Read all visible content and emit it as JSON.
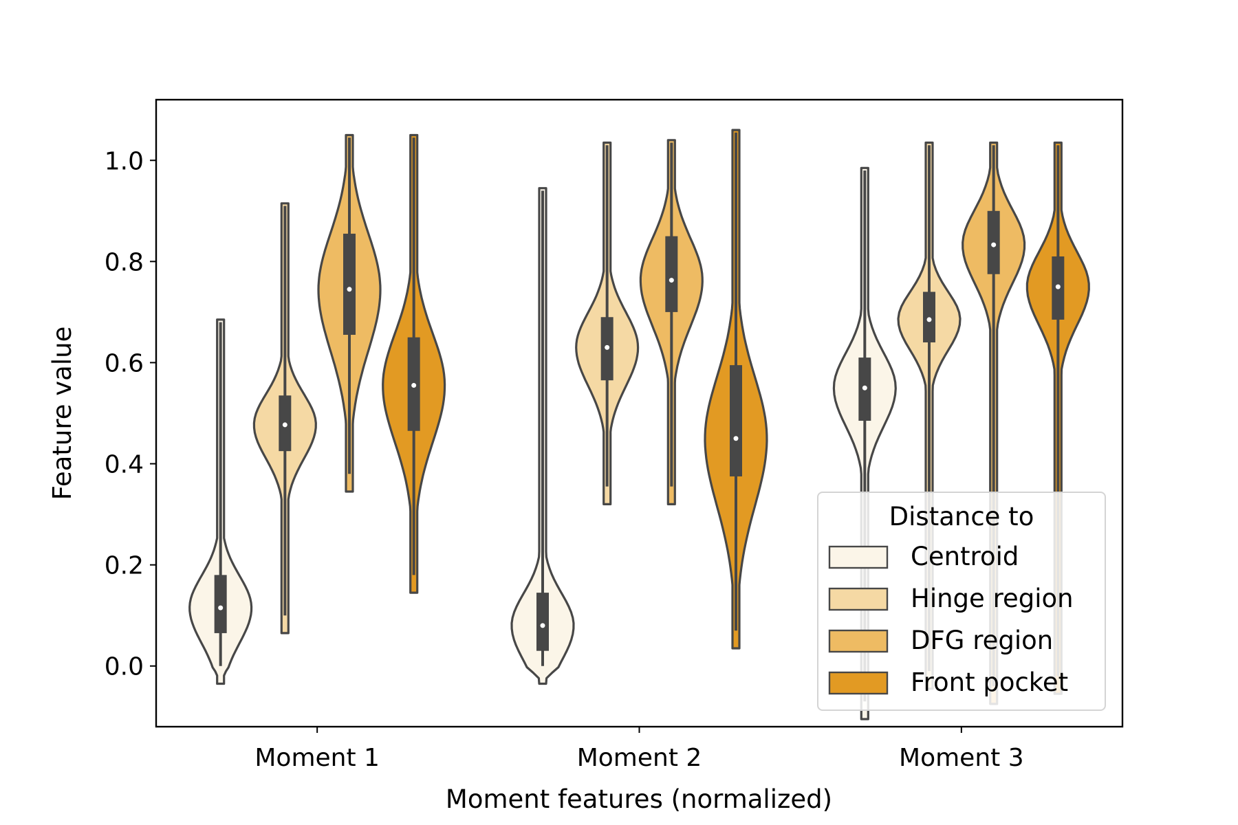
{
  "chart_data": {
    "type": "violin",
    "xlabel": "Moment features (normalized)",
    "ylabel": "Feature value",
    "categories": [
      "Moment 1",
      "Moment 2",
      "Moment 3"
    ],
    "ylim": [
      -0.12,
      1.12
    ],
    "yticks": [
      "0.0",
      "0.2",
      "0.4",
      "0.6",
      "0.8",
      "1.0"
    ],
    "legend": {
      "title": "Distance to",
      "placement": "lower right"
    },
    "series": [
      {
        "name": "Centroid",
        "color": "#fbf5e8",
        "stats": [
          {
            "min": 0.0,
            "q1": 0.065,
            "median": 0.115,
            "q3": 0.18,
            "max": 0.68
          },
          {
            "min": 0.0,
            "q1": 0.03,
            "median": 0.08,
            "q3": 0.145,
            "max": 0.94
          },
          {
            "min": -0.07,
            "q1": 0.485,
            "median": 0.55,
            "q3": 0.61,
            "max": 0.98
          }
        ]
      },
      {
        "name": "Hinge region",
        "color": "#f5d9a4",
        "stats": [
          {
            "min": 0.1,
            "q1": 0.425,
            "median": 0.477,
            "q3": 0.535,
            "max": 0.91
          },
          {
            "min": 0.355,
            "q1": 0.565,
            "median": 0.63,
            "q3": 0.69,
            "max": 1.03
          },
          {
            "min": -0.01,
            "q1": 0.64,
            "median": 0.685,
            "q3": 0.74,
            "max": 1.03
          }
        ]
      },
      {
        "name": "DFG region",
        "color": "#eebb63",
        "stats": [
          {
            "min": 0.38,
            "q1": 0.655,
            "median": 0.745,
            "q3": 0.855,
            "max": 1.045
          },
          {
            "min": 0.355,
            "q1": 0.7,
            "median": 0.763,
            "q3": 0.85,
            "max": 1.035
          },
          {
            "min": -0.04,
            "q1": 0.775,
            "median": 0.833,
            "q3": 0.9,
            "max": 1.03
          }
        ]
      },
      {
        "name": "Front pocket",
        "color": "#e29a23",
        "stats": [
          {
            "min": 0.18,
            "q1": 0.465,
            "median": 0.555,
            "q3": 0.65,
            "max": 1.045
          },
          {
            "min": 0.07,
            "q1": 0.375,
            "median": 0.45,
            "q3": 0.595,
            "max": 1.055
          },
          {
            "min": -0.02,
            "q1": 0.685,
            "median": 0.75,
            "q3": 0.81,
            "max": 1.03
          }
        ]
      }
    ]
  }
}
